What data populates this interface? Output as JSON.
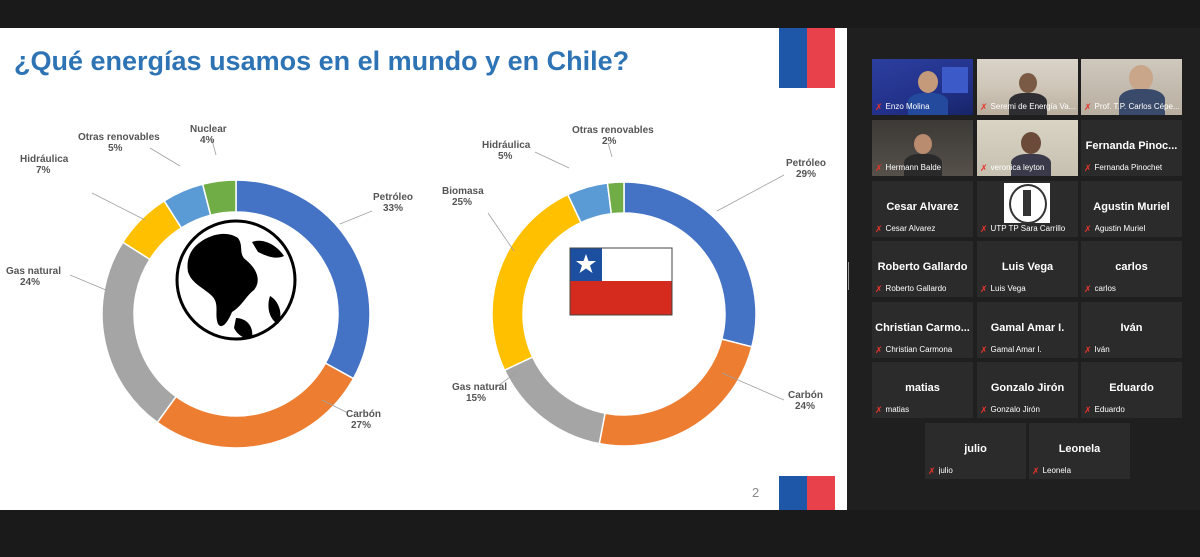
{
  "slide": {
    "title": "¿Qué energías usamos en el mundo y en Chile?",
    "page_number": "2",
    "colors": {
      "title": "#2e74b5",
      "flag_blue": "#1f57a8",
      "flag_red": "#e8414b"
    }
  },
  "chart_data": [
    {
      "type": "pie",
      "variant": "donut",
      "title": "",
      "center_icon": "globe-icon",
      "slices": [
        {
          "name": "Petróleo",
          "value": 33,
          "label": "33%",
          "color": "#4472c4"
        },
        {
          "name": "Carbón",
          "value": 27,
          "label": "27%",
          "color": "#ed7d31"
        },
        {
          "name": "Gas natural",
          "value": 24,
          "label": "24%",
          "color": "#a5a5a5"
        },
        {
          "name": "Hidráulica",
          "value": 7,
          "label": "7%",
          "color": "#ffc000"
        },
        {
          "name": "Otras renovables",
          "value": 5,
          "label": "5%",
          "color": "#5b9bd5"
        },
        {
          "name": "Nuclear",
          "value": 4,
          "label": "4%",
          "color": "#70ad47"
        }
      ]
    },
    {
      "type": "pie",
      "variant": "donut",
      "title": "",
      "center_icon": "chile-flag-icon",
      "slices": [
        {
          "name": "Petróleo",
          "value": 29,
          "label": "29%",
          "color": "#4472c4"
        },
        {
          "name": "Carbón",
          "value": 24,
          "label": "24%",
          "color": "#ed7d31"
        },
        {
          "name": "Gas natural",
          "value": 15,
          "label": "15%",
          "color": "#a5a5a5"
        },
        {
          "name": "Biomasa",
          "value": 25,
          "label": "25%",
          "color": "#ffc000"
        },
        {
          "name": "Hidráulica",
          "value": 5,
          "label": "5%",
          "color": "#5b9bd5"
        },
        {
          "name": "Otras renovables",
          "value": 2,
          "label": "2%",
          "color": "#70ad47"
        }
      ]
    }
  ],
  "participants": [
    {
      "name": "",
      "label": "Enzo Molina",
      "video": true
    },
    {
      "name": "",
      "label": "Seremi de Energía Va...",
      "video": true
    },
    {
      "name": "",
      "label": "Prof. T.P. Carlos Cépe...",
      "video": true
    },
    {
      "name": "",
      "label": "Hermann Balde",
      "video": true,
      "active": true
    },
    {
      "name": "",
      "label": "veronica leyton",
      "video": true
    },
    {
      "name": "Fernanda  Pinoc...",
      "label": "Fernanda Pinochet"
    },
    {
      "name": "Cesar Alvarez",
      "label": "Cesar Alvarez"
    },
    {
      "name": "",
      "label": "UTP TP Sara Carrillo",
      "video": true
    },
    {
      "name": "Agustin Muriel",
      "label": "Agustin Muriel"
    },
    {
      "name": "Roberto Gallardo",
      "label": "Roberto Gallardo"
    },
    {
      "name": "Luis Vega",
      "label": "Luis Vega"
    },
    {
      "name": "carlos",
      "label": "carlos"
    },
    {
      "name": "Christian  Carmo...",
      "label": "Christian Carmona"
    },
    {
      "name": "Gamal Amar I.",
      "label": "Gamal Amar I."
    },
    {
      "name": "Iván",
      "label": "Iván"
    },
    {
      "name": "matias",
      "label": "matias"
    },
    {
      "name": "Gonzalo Jirón",
      "label": "Gonzalo Jirón"
    },
    {
      "name": "Eduardo",
      "label": "Eduardo"
    },
    {
      "name": "julio",
      "label": "julio"
    },
    {
      "name": "Leonela",
      "label": "Leonela"
    }
  ],
  "icons": {
    "muted": "mic-muted-icon",
    "splitter": "panel-resize-handle-icon"
  }
}
